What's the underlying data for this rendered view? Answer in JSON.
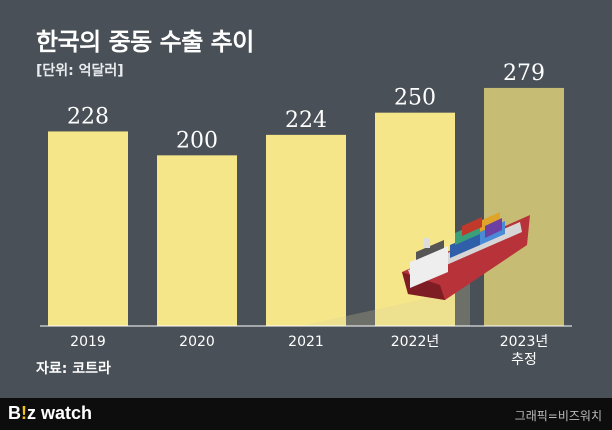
{
  "title": "한국의 중동 수출 추이",
  "unit": "[단위: 억달러]",
  "source": "자료: 코트라",
  "footer": {
    "brand_part1": "B",
    "brand_part2": "!",
    "brand_part3": "z watch",
    "credit": "그래픽=비즈워치"
  },
  "colors": {
    "background": "#495057",
    "bar": "#f5e68a",
    "bar_estimate": "#c6bc74",
    "ship_hull": "#b8323a"
  },
  "chart_data": {
    "type": "bar",
    "categories": [
      "2019",
      "2020",
      "2021",
      "2022년",
      "2023년"
    ],
    "category_sublabels": [
      "",
      "",
      "",
      "",
      "추정"
    ],
    "values": [
      228,
      200,
      224,
      250,
      279
    ],
    "estimated": [
      false,
      false,
      false,
      false,
      true
    ],
    "title": "한국의 중동 수출 추이",
    "xlabel": "",
    "ylabel": "",
    "ylim": [
      0,
      300
    ],
    "grid": false
  }
}
